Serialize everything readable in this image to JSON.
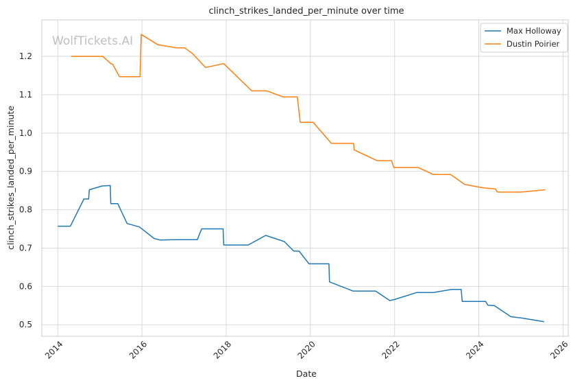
{
  "watermark": "WolfTickets.AI",
  "chart_data": {
    "type": "line",
    "title": "clinch_strikes_landed_per_minute over time",
    "xlabel": "Date",
    "ylabel": "clinch_strikes_landed_per_minute",
    "xlim": [
      "2013-08-15",
      "2026-02-15"
    ],
    "ylim": [
      0.47,
      1.295
    ],
    "xticks": [
      "2014",
      "2016",
      "2018",
      "2020",
      "2022",
      "2024",
      "2026"
    ],
    "yticks": [
      "0.5",
      "0.6",
      "0.7",
      "0.8",
      "0.9",
      "1.0",
      "1.1",
      "1.2"
    ],
    "grid": true,
    "legend_position": "top-right",
    "series": [
      {
        "name": "Max Holloway",
        "color": "#1f77b4",
        "points": [
          [
            "2014-01-01",
            0.757
          ],
          [
            "2014-04-20",
            0.757
          ],
          [
            "2014-08-15",
            0.828
          ],
          [
            "2014-09-25",
            0.828
          ],
          [
            "2014-10-01",
            0.852
          ],
          [
            "2015-01-20",
            0.862
          ],
          [
            "2015-04-01",
            0.863
          ],
          [
            "2015-04-05",
            0.816
          ],
          [
            "2015-06-05",
            0.816
          ],
          [
            "2015-08-25",
            0.764
          ],
          [
            "2015-12-10",
            0.755
          ],
          [
            "2016-04-15",
            0.725
          ],
          [
            "2016-06-05",
            0.721
          ],
          [
            "2016-11-15",
            0.722
          ],
          [
            "2017-03-10",
            0.722
          ],
          [
            "2017-04-25",
            0.722
          ],
          [
            "2017-06-01",
            0.75
          ],
          [
            "2017-12-05",
            0.75
          ],
          [
            "2017-12-10",
            0.708
          ],
          [
            "2018-07-10",
            0.708
          ],
          [
            "2018-12-10",
            0.733
          ],
          [
            "2019-05-20",
            0.717
          ],
          [
            "2019-08-10",
            0.692
          ],
          [
            "2019-09-25",
            0.692
          ],
          [
            "2019-12-20",
            0.659
          ],
          [
            "2020-06-10",
            0.659
          ],
          [
            "2020-06-15",
            0.612
          ],
          [
            "2021-01-05",
            0.588
          ],
          [
            "2021-07-20",
            0.588
          ],
          [
            "2021-11-20",
            0.563
          ],
          [
            "2022-01-01",
            0.566
          ],
          [
            "2022-07-10",
            0.584
          ],
          [
            "2022-11-30",
            0.584
          ],
          [
            "2023-05-10",
            0.592
          ],
          [
            "2023-08-01",
            0.592
          ],
          [
            "2023-08-10",
            0.561
          ],
          [
            "2024-03-01",
            0.561
          ],
          [
            "2024-03-20",
            0.551
          ],
          [
            "2024-05-15",
            0.55
          ],
          [
            "2024-10-05",
            0.521
          ],
          [
            "2025-01-20",
            0.517
          ],
          [
            "2025-07-20",
            0.508
          ]
        ]
      },
      {
        "name": "Dustin Poirier",
        "color": "#ff7f0e",
        "points": [
          [
            "2014-04-25",
            1.2
          ],
          [
            "2015-01-25",
            1.2
          ],
          [
            "2015-04-10",
            1.18
          ],
          [
            "2015-04-20",
            1.18
          ],
          [
            "2015-06-20",
            1.147
          ],
          [
            "2015-12-15",
            1.147
          ],
          [
            "2015-12-25",
            1.257
          ],
          [
            "2016-05-20",
            1.23
          ],
          [
            "2016-10-30",
            1.222
          ],
          [
            "2017-01-05",
            1.222
          ],
          [
            "2017-03-15",
            1.207
          ],
          [
            "2017-07-05",
            1.171
          ],
          [
            "2017-12-10",
            1.181
          ],
          [
            "2018-08-10",
            1.11
          ],
          [
            "2018-12-20",
            1.11
          ],
          [
            "2019-05-10",
            1.094
          ],
          [
            "2019-09-10",
            1.094
          ],
          [
            "2019-10-05",
            1.028
          ],
          [
            "2020-01-25",
            1.028
          ],
          [
            "2020-07-01",
            0.973
          ],
          [
            "2021-01-10",
            0.973
          ],
          [
            "2021-01-15",
            0.956
          ],
          [
            "2021-08-01",
            0.928
          ],
          [
            "2021-12-05",
            0.928
          ],
          [
            "2021-12-25",
            0.91
          ],
          [
            "2022-07-25",
            0.91
          ],
          [
            "2022-12-01",
            0.892
          ],
          [
            "2023-05-01",
            0.892
          ],
          [
            "2023-09-01",
            0.866
          ],
          [
            "2024-02-10",
            0.857
          ],
          [
            "2024-05-25",
            0.854
          ],
          [
            "2024-06-10",
            0.846
          ],
          [
            "2025-01-01",
            0.846
          ],
          [
            "2025-08-01",
            0.852
          ]
        ]
      }
    ]
  }
}
